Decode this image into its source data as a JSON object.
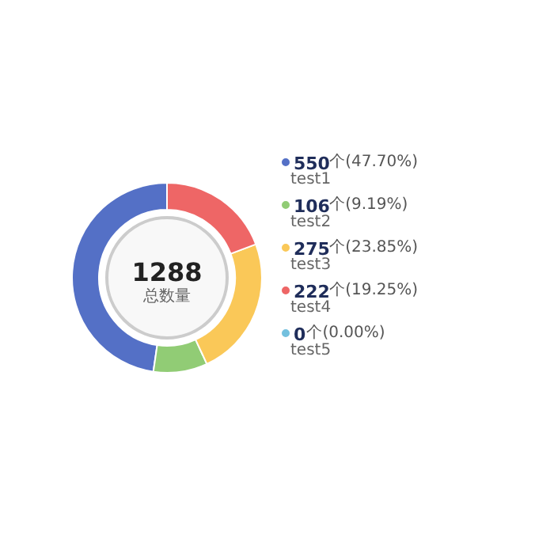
{
  "chart_data": {
    "type": "donut",
    "categories": [
      "test1",
      "test2",
      "test3",
      "test4",
      "test5"
    ],
    "values": [
      550,
      106,
      275,
      222,
      0
    ],
    "colors": [
      "#5470c6",
      "#91cc75",
      "#fac858",
      "#ee6666",
      "#73c0de"
    ],
    "value_labels": [
      "550个(47.70%)",
      "106个(9.19%)",
      "275个(23.85%)",
      "222个(19.25%)",
      "0个(0.00%)"
    ],
    "annotations": [
      "1288",
      "总数量"
    ],
    "legend": "right"
  }
}
